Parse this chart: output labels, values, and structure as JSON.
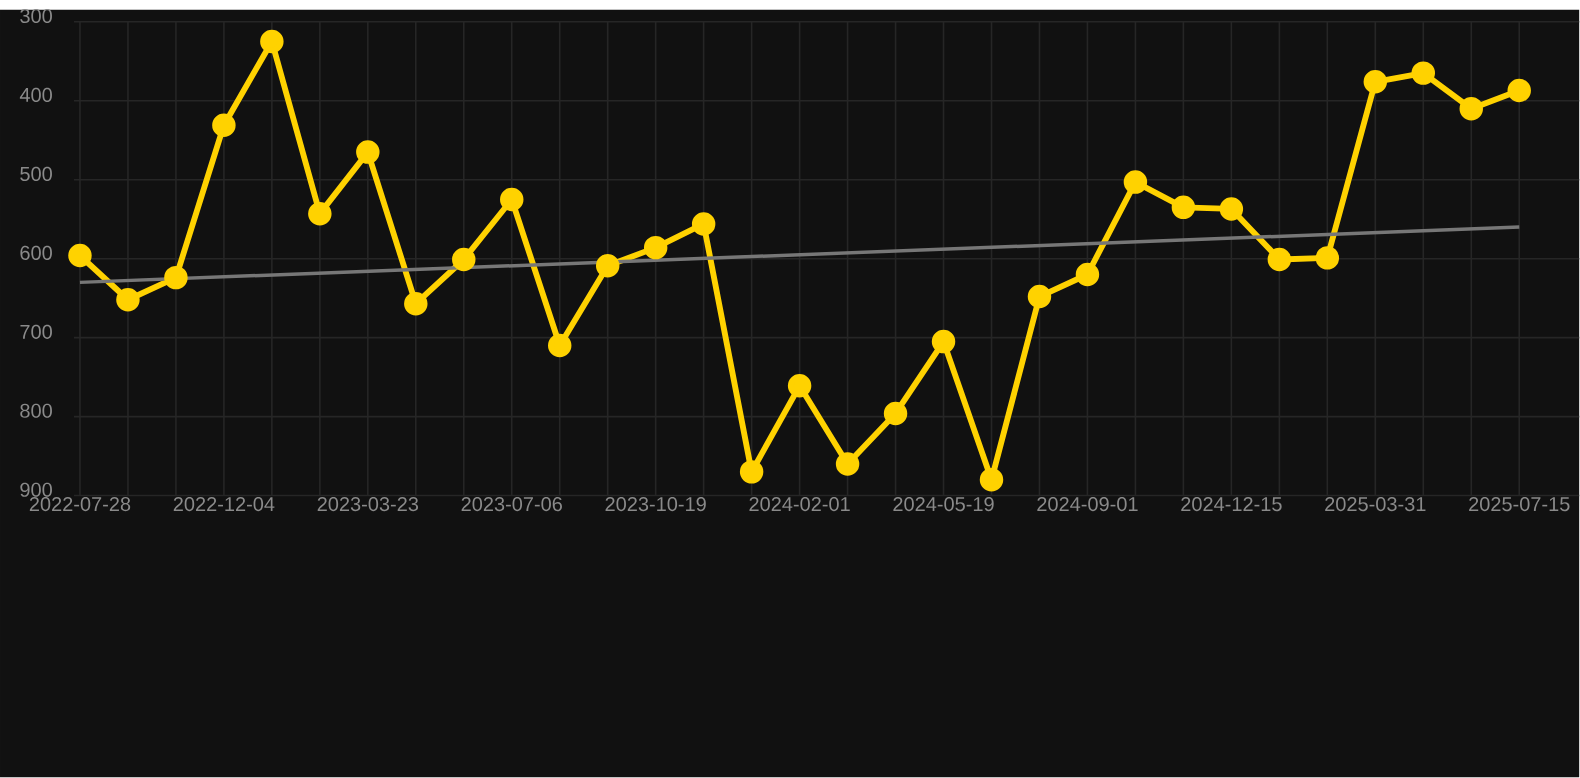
{
  "chart_data": {
    "type": "line",
    "categories": [
      "2022-07-28",
      null,
      null,
      "2022-12-04",
      null,
      null,
      "2023-03-23",
      null,
      null,
      "2023-07-06",
      null,
      null,
      "2023-10-19",
      null,
      null,
      "2024-02-01",
      null,
      null,
      "2024-05-19",
      null,
      null,
      "2024-09-01",
      null,
      null,
      "2024-12-15",
      null,
      null,
      "2025-03-31",
      null,
      null,
      "2025-07-15"
    ],
    "series": [
      {
        "color": "#ffd200",
        "values": [
          596,
          652,
          624,
          431,
          325,
          543,
          465,
          657,
          601,
          525,
          710,
          609,
          586,
          556,
          870,
          761,
          860,
          796,
          705,
          880,
          648,
          620,
          503,
          535,
          537,
          601,
          599,
          376,
          365,
          410,
          387
        ]
      },
      {
        "type": "line",
        "color": "#777777",
        "marker": "none",
        "values": [
          630,
          null,
          null,
          null,
          null,
          null,
          null,
          null,
          null,
          null,
          null,
          null,
          null,
          null,
          null,
          null,
          null,
          null,
          null,
          null,
          null,
          null,
          null,
          null,
          null,
          null,
          null,
          null,
          null,
          null,
          560
        ]
      }
    ],
    "ylim": [
      900,
      300
    ],
    "yticks": [
      300,
      400,
      500,
      600,
      700,
      800,
      900
    ],
    "grid": true,
    "marker": "circle",
    "line_style": "solid"
  }
}
